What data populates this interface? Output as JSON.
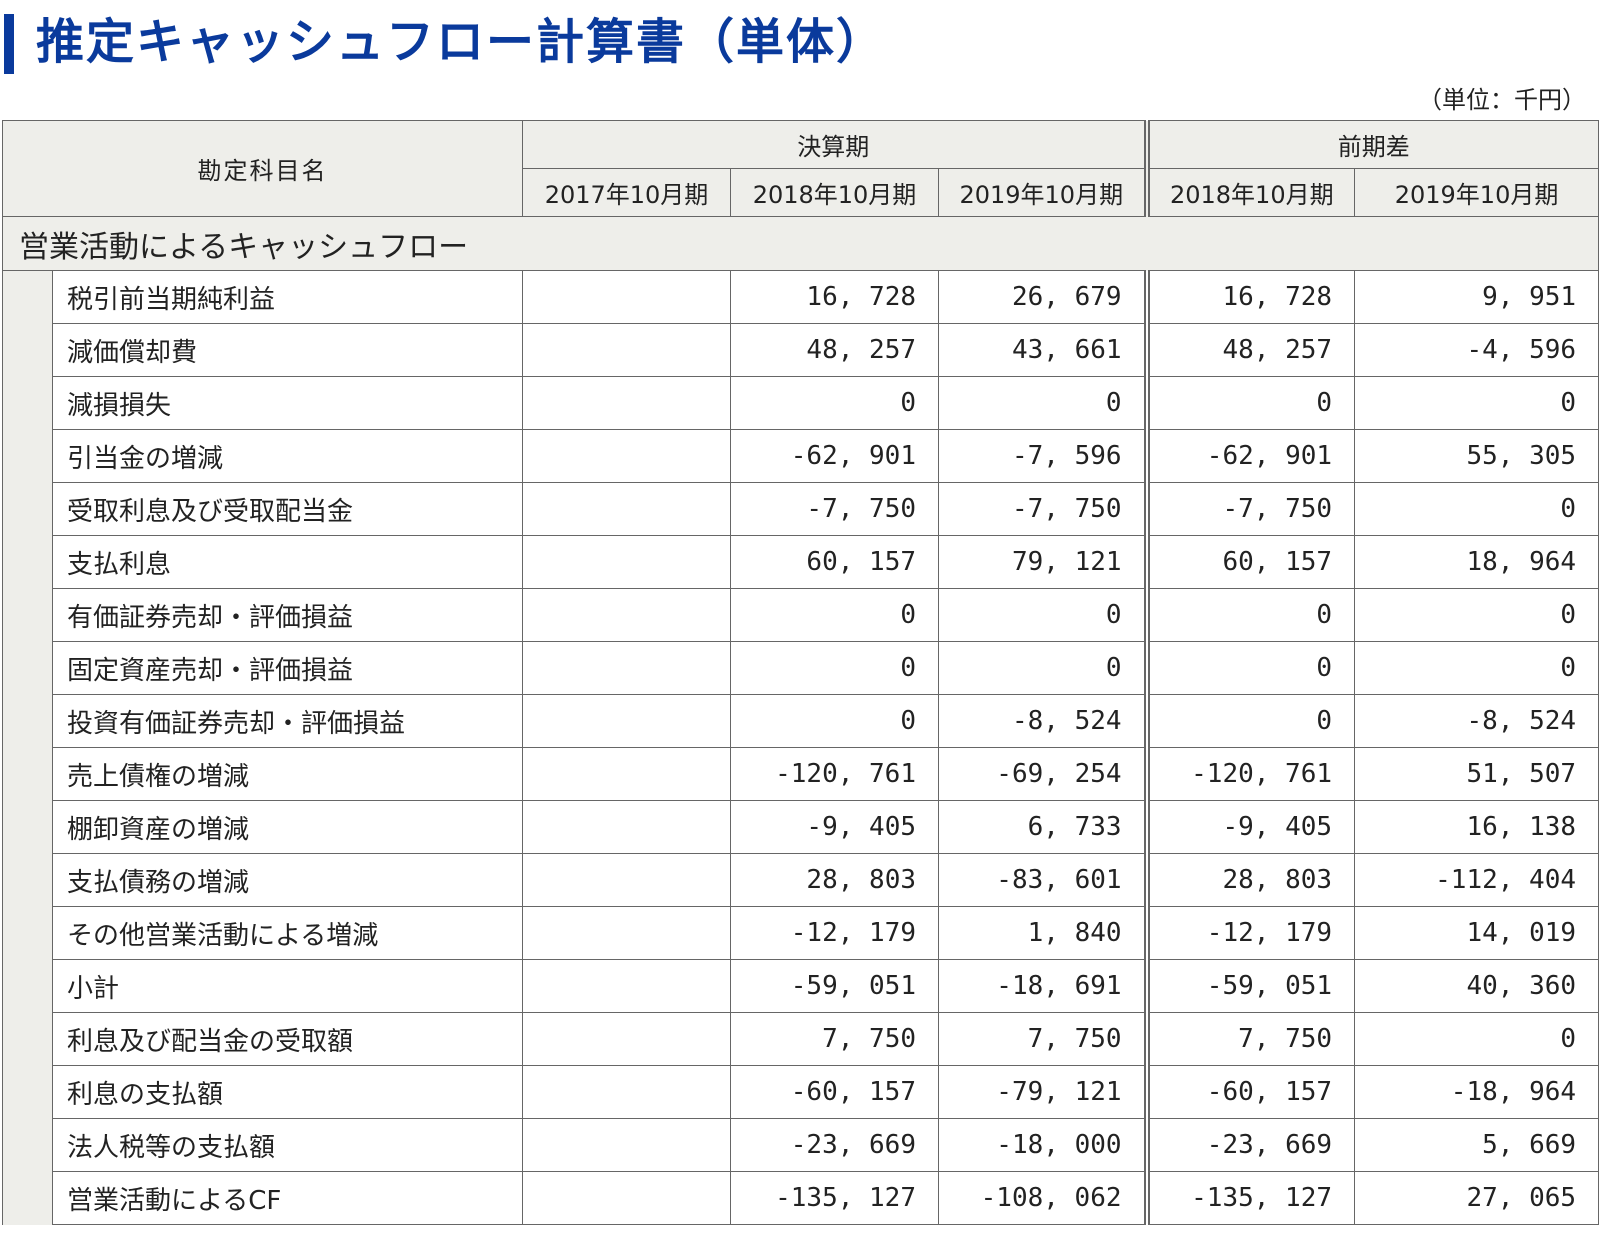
{
  "page": {
    "title": "推定キャッシュフロー計算書（単体）",
    "unit_note": "（単位：千円）"
  },
  "table": {
    "header": {
      "account_label": "勘定科目名",
      "group_settlement": "決算期",
      "group_diff": "前期差",
      "periods": [
        "2017年10月期",
        "2018年10月期",
        "2019年10月期"
      ],
      "diff_periods": [
        "2018年10月期",
        "2019年10月期"
      ]
    },
    "section_title": "営業活動によるキャッシュフロー",
    "rows": [
      {
        "label": "税引前当期純利益",
        "v2017": "",
        "v2018": "16, 728",
        "v2019": "26, 679",
        "d2018": "16, 728",
        "d2019": "9, 951"
      },
      {
        "label": "減価償却費",
        "v2017": "",
        "v2018": "48, 257",
        "v2019": "43, 661",
        "d2018": "48, 257",
        "d2019": "-4, 596"
      },
      {
        "label": "減損損失",
        "v2017": "",
        "v2018": "0",
        "v2019": "0",
        "d2018": "0",
        "d2019": "0"
      },
      {
        "label": "引当金の増減",
        "v2017": "",
        "v2018": "-62, 901",
        "v2019": "-7, 596",
        "d2018": "-62, 901",
        "d2019": "55, 305"
      },
      {
        "label": "受取利息及び受取配当金",
        "v2017": "",
        "v2018": "-7, 750",
        "v2019": "-7, 750",
        "d2018": "-7, 750",
        "d2019": "0"
      },
      {
        "label": "支払利息",
        "v2017": "",
        "v2018": "60, 157",
        "v2019": "79, 121",
        "d2018": "60, 157",
        "d2019": "18, 964"
      },
      {
        "label": "有価証券売却・評価損益",
        "v2017": "",
        "v2018": "0",
        "v2019": "0",
        "d2018": "0",
        "d2019": "0"
      },
      {
        "label": "固定資産売却・評価損益",
        "v2017": "",
        "v2018": "0",
        "v2019": "0",
        "d2018": "0",
        "d2019": "0"
      },
      {
        "label": "投資有価証券売却・評価損益",
        "v2017": "",
        "v2018": "0",
        "v2019": "-8, 524",
        "d2018": "0",
        "d2019": "-8, 524"
      },
      {
        "label": "売上債権の増減",
        "v2017": "",
        "v2018": "-120, 761",
        "v2019": "-69, 254",
        "d2018": "-120, 761",
        "d2019": "51, 507"
      },
      {
        "label": "棚卸資産の増減",
        "v2017": "",
        "v2018": "-9, 405",
        "v2019": "6, 733",
        "d2018": "-9, 405",
        "d2019": "16, 138"
      },
      {
        "label": "支払債務の増減",
        "v2017": "",
        "v2018": "28, 803",
        "v2019": "-83, 601",
        "d2018": "28, 803",
        "d2019": "-112, 404"
      },
      {
        "label": "その他営業活動による増減",
        "v2017": "",
        "v2018": "-12, 179",
        "v2019": "1, 840",
        "d2018": "-12, 179",
        "d2019": "14, 019"
      },
      {
        "label": "小計",
        "v2017": "",
        "v2018": "-59, 051",
        "v2019": "-18, 691",
        "d2018": "-59, 051",
        "d2019": "40, 360"
      },
      {
        "label": "利息及び配当金の受取額",
        "v2017": "",
        "v2018": "7, 750",
        "v2019": "7, 750",
        "d2018": "7, 750",
        "d2019": "0"
      },
      {
        "label": "利息の支払額",
        "v2017": "",
        "v2018": "-60, 157",
        "v2019": "-79, 121",
        "d2018": "-60, 157",
        "d2019": "-18, 964"
      },
      {
        "label": "法人税等の支払額",
        "v2017": "",
        "v2018": "-23, 669",
        "v2019": "-18, 000",
        "d2018": "-23, 669",
        "d2019": "5, 669"
      },
      {
        "label": "営業活動によるCF",
        "v2017": "",
        "v2018": "-135, 127",
        "v2019": "-108, 062",
        "d2018": "-135, 127",
        "d2019": "27, 065"
      }
    ]
  },
  "colors": {
    "accent": "#0a3a9c",
    "header_bg": "#eeeeea",
    "border": "#666666"
  }
}
